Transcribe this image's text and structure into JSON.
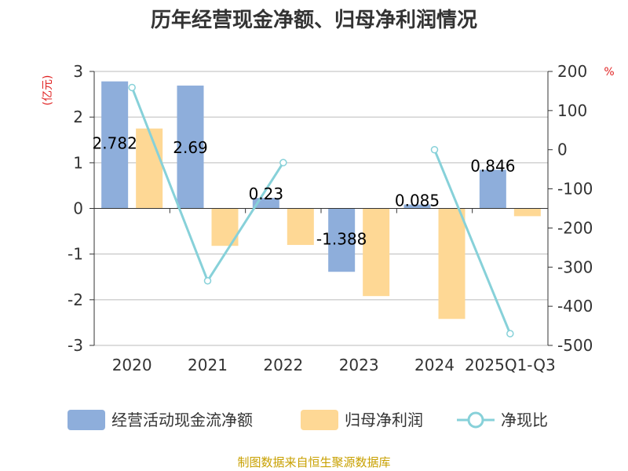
{
  "chart_data": {
    "type": "bar",
    "title": "历年经营现金净额、归母净利润情况",
    "categories": [
      "2020",
      "2021",
      "2022",
      "2023",
      "2024",
      "2025Q1-Q3"
    ],
    "series": [
      {
        "name": "经营活动现金流净额",
        "type": "bar",
        "axis": "left",
        "color": "#8eaedb",
        "values": [
          2.782,
          2.69,
          0.23,
          -1.388,
          0.085,
          0.846
        ],
        "labels": [
          "2.782",
          "2.69",
          "0.23",
          "-1.388",
          "0.085",
          "0.846"
        ]
      },
      {
        "name": "归母净利润",
        "type": "bar",
        "axis": "left",
        "color": "#fed895",
        "values": [
          1.75,
          -0.82,
          -0.8,
          -1.92,
          -2.42,
          -0.17
        ]
      },
      {
        "name": "净现比",
        "type": "line",
        "axis": "right",
        "color": "#87d1d9",
        "values": [
          159,
          -335,
          -33,
          null,
          0,
          -470
        ]
      }
    ],
    "ylabel_left": "(亿元)",
    "ylabel_right": "%",
    "ylim_left": [
      -3,
      3
    ],
    "yticks_left": [
      3,
      2,
      1,
      0,
      -1,
      -2,
      -3
    ],
    "ylim_right": [
      -500,
      200
    ],
    "yticks_right": [
      200,
      100,
      0,
      -100,
      -200,
      -300,
      -400,
      -500
    ],
    "grid": true,
    "legend_position": "bottom"
  },
  "source_text": "制图数据来自恒生聚源数据库",
  "colors": {
    "unit_label": "#e02020",
    "source_text": "#c8a000",
    "grid": "#bbbbbb",
    "axis": "#333333"
  }
}
